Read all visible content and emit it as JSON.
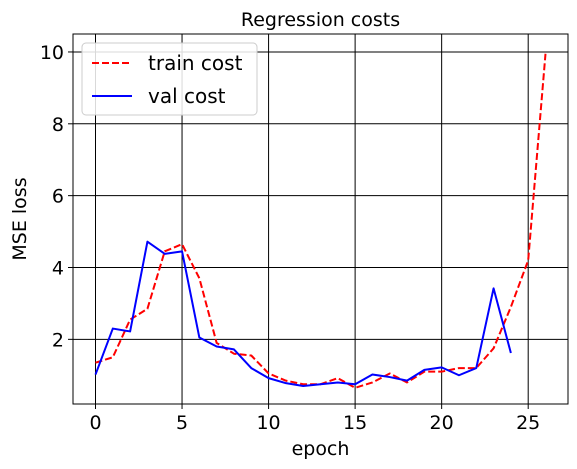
{
  "chart_data": {
    "type": "line",
    "title": "Regression costs",
    "xlabel": "epoch",
    "ylabel": "MSE loss",
    "xlim": [
      -1.3,
      27.3
    ],
    "ylim": [
      0.2,
      10.5
    ],
    "xticks": [
      0,
      5,
      10,
      15,
      20,
      25
    ],
    "yticks": [
      2,
      4,
      6,
      8,
      10
    ],
    "grid": true,
    "legend_position": "top-left",
    "series": [
      {
        "name": "train cost",
        "color": "#ff0000",
        "style": "dashed",
        "x": [
          0,
          1,
          2,
          3,
          4,
          5,
          6,
          7,
          8,
          9,
          10,
          11,
          12,
          13,
          14,
          15,
          16,
          17,
          18,
          19,
          20,
          21,
          22,
          23,
          24,
          25,
          26
        ],
        "values": [
          1.35,
          1.5,
          2.55,
          2.85,
          4.45,
          4.65,
          3.7,
          1.9,
          1.6,
          1.55,
          1.05,
          0.85,
          0.75,
          0.75,
          0.92,
          0.65,
          0.8,
          1.05,
          0.8,
          1.1,
          1.1,
          1.2,
          1.2,
          1.75,
          2.9,
          4.2,
          9.95
        ]
      },
      {
        "name": "val cost",
        "color": "#0000ff",
        "style": "solid",
        "x": [
          0,
          1,
          2,
          3,
          4,
          5,
          6,
          7,
          8,
          9,
          10,
          11,
          12,
          13,
          14,
          15,
          16,
          17,
          18,
          19,
          20,
          21,
          22,
          23,
          24
        ],
        "values": [
          1.02,
          2.3,
          2.22,
          4.72,
          4.38,
          4.45,
          2.05,
          1.8,
          1.72,
          1.2,
          0.92,
          0.78,
          0.7,
          0.75,
          0.8,
          0.75,
          1.02,
          0.95,
          0.85,
          1.15,
          1.22,
          1.0,
          1.2,
          3.42,
          1.62
        ]
      }
    ]
  }
}
